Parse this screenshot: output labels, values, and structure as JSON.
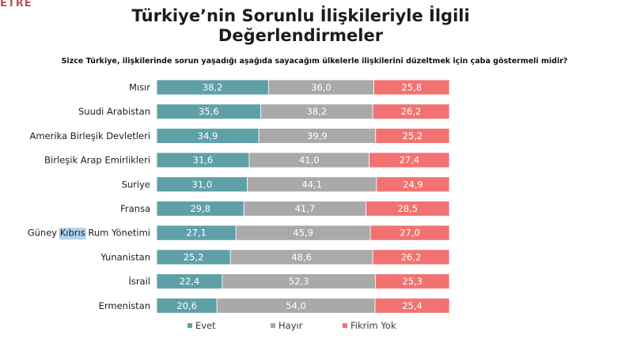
{
  "logo": {
    "text": "ETRE",
    "subtext": ""
  },
  "title_line1": "Türkiye’nin Sorunlu İlişkileriyle İlgili",
  "title_line2": "Değerlendirmeler",
  "question": "Sizce Türkiye, ilişkilerinde sorun yaşadığı aşağıda sayacağım ülkelerle ilişkilerini düzeltmek için çaba göstermeli midir?",
  "highlight_word": "Kıbrıs",
  "chart_data": {
    "type": "bar",
    "orientation": "horizontal",
    "stacked": true,
    "categories": [
      "Mısır",
      "Suudi Arabistan",
      "Amerika Birleşik Devletleri",
      "Birleşik Arap Emirlikleri",
      "Suriye",
      "Fransa",
      "Güney Kıbrıs Rum Yönetimi",
      "Yunanistan",
      "İsrail",
      "Ermenistan"
    ],
    "series": [
      {
        "name": "Evet",
        "color": "#5fa0a8",
        "values": [
          38.2,
          35.6,
          34.9,
          31.6,
          31.0,
          29.8,
          27.1,
          25.2,
          22.4,
          20.6
        ]
      },
      {
        "name": "Hayır",
        "color": "#a9a9a9",
        "values": [
          36.0,
          38.2,
          39.9,
          41.0,
          44.1,
          41.7,
          45.9,
          48.6,
          52.3,
          54.0
        ]
      },
      {
        "name": "Fikrim Yok",
        "color": "#f27272",
        "values": [
          25.8,
          26.2,
          25.2,
          27.4,
          24.9,
          28.5,
          27.0,
          26.2,
          25.3,
          25.4
        ]
      }
    ],
    "data_labels": [
      [
        "38,2",
        "36,0",
        "25,8"
      ],
      [
        "35,6",
        "38,2",
        "26,2"
      ],
      [
        "34,9",
        "39,9",
        "25,2"
      ],
      [
        "31,6",
        "41,0",
        "27,4"
      ],
      [
        "31,0",
        "44,1",
        "24,9"
      ],
      [
        "29,8",
        "41,7",
        "28,5"
      ],
      [
        "27,1",
        "45,9",
        "27,0"
      ],
      [
        "25,2",
        "48,6",
        "26,2"
      ],
      [
        "22,4",
        "52,3",
        "25,3"
      ],
      [
        "20,6",
        "54,0",
        "25,4"
      ]
    ],
    "legend_position": "bottom",
    "grid": false
  }
}
